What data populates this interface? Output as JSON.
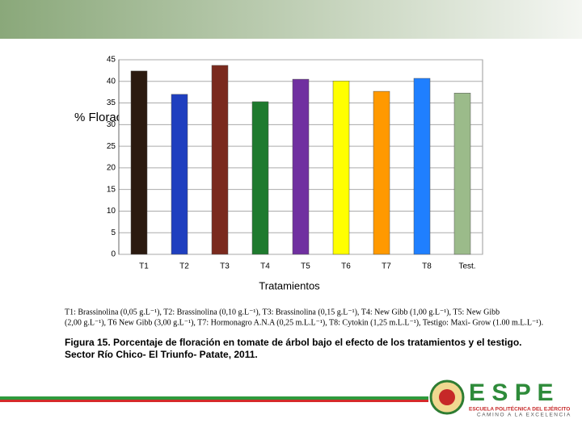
{
  "chart_data": {
    "type": "bar",
    "ylabel": "% Floración",
    "xlabel": "Tratamientos",
    "categories": [
      "T1",
      "T2",
      "T3",
      "T4",
      "T5",
      "T6",
      "T7",
      "T8",
      "Test."
    ],
    "values": [
      42.4,
      37.0,
      43.7,
      35.3,
      40.5,
      40.1,
      37.7,
      40.7,
      37.3
    ],
    "colors": [
      "#2b1a10",
      "#1f3fbf",
      "#7a2a1e",
      "#1e7a2e",
      "#7030a0",
      "#ffff00",
      "#ff9900",
      "#1f7fff",
      "#9bbb8a"
    ],
    "ylim": [
      0,
      45
    ],
    "yticks": [
      0,
      5,
      10,
      15,
      20,
      25,
      30,
      35,
      40,
      45
    ],
    "grid": true
  },
  "legend_lines": [
    "T1: Brassinolina (0,05 g.L⁻¹),  T2: Brassinolina (0,10 g.L⁻¹),  T3: Brassinolina (0,15 g.L⁻¹),  T4: New Gibb (1,00 g.L⁻¹), T5: New Gibb",
    "(2,00 g.L⁻¹), T6 New Gibb (3,00 g.L⁻¹), T7: Hormonagro A.N.A (0,25 m.L.L⁻¹), T8: Cytokin (1,25 m.L.L⁻¹), Testigo: Maxi- Grow (1.00 m.L.L⁻¹)."
  ],
  "caption_lines": [
    "Figura 15. Porcentaje de floración en tomate de árbol bajo el efecto de los tratamientos y el testigo.",
    "Sector  Río Chico- El Triunfo- Patate, 2011."
  ],
  "logo": {
    "name": "E S P E",
    "subtitle": "ESCUELA POLITÉCNICA DEL EJÉRCITO",
    "motto": "CAMINO A LA EXCELENCIA"
  }
}
